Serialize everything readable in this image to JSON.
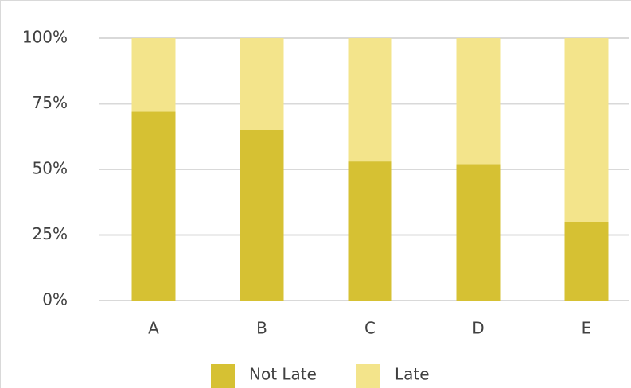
{
  "chart_data": {
    "type": "bar",
    "stacked": true,
    "categories": [
      "A",
      "B",
      "C",
      "D",
      "E"
    ],
    "series": [
      {
        "name": "Not Late",
        "color": "#d6c133",
        "values": [
          72,
          65,
          53,
          52,
          30
        ]
      },
      {
        "name": "Late",
        "color": "#f3e48b",
        "values": [
          28,
          35,
          47,
          48,
          70
        ]
      }
    ],
    "ylim": [
      0,
      100
    ],
    "yticks": [
      {
        "value": 0,
        "label": "0%"
      },
      {
        "value": 25,
        "label": "25%"
      },
      {
        "value": 50,
        "label": "50%"
      },
      {
        "value": 75,
        "label": "75%"
      },
      {
        "value": 100,
        "label": "100%"
      }
    ],
    "grid": true,
    "legend": "bottom"
  }
}
